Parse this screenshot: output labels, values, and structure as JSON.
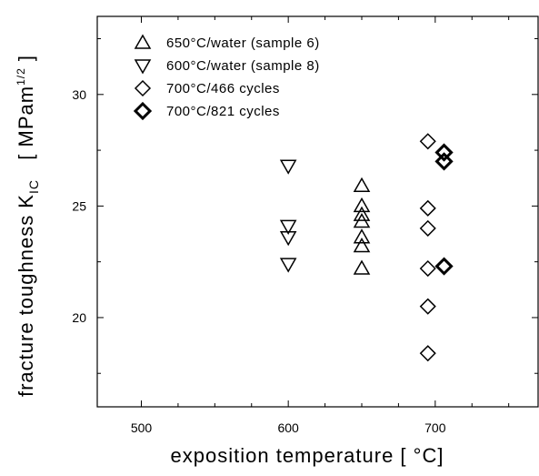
{
  "chart_data": {
    "type": "scatter",
    "title": "",
    "xlabel": "exposition temperature [ °C]",
    "ylabel_main": "fracture toughness K",
    "ylabel_sub": "IC",
    "ylabel_unit_open": "[ MPam",
    "ylabel_unit_sup": "1/2",
    "ylabel_unit_close": " ]",
    "xlim": [
      470,
      770
    ],
    "ylim": [
      16,
      33.5
    ],
    "xticks": [
      500,
      600,
      700
    ],
    "yticks": [
      20,
      25,
      30
    ],
    "xtick_labels": [
      "500",
      "600",
      "700"
    ],
    "ytick_labels": [
      "20",
      "25",
      "30"
    ],
    "grid": false,
    "legend_placement": "top-left",
    "series": [
      {
        "name": "650°C/water (sample 6)",
        "marker": "triangle-up",
        "points": [
          {
            "x": 650,
            "y": 25.9
          },
          {
            "x": 650,
            "y": 25.0
          },
          {
            "x": 650,
            "y": 24.6
          },
          {
            "x": 650,
            "y": 24.3
          },
          {
            "x": 650,
            "y": 23.6
          },
          {
            "x": 650,
            "y": 23.2
          },
          {
            "x": 650,
            "y": 22.2
          }
        ]
      },
      {
        "name": "600°C/water (sample 8)",
        "marker": "triangle-down",
        "points": [
          {
            "x": 600,
            "y": 26.8
          },
          {
            "x": 600,
            "y": 24.1
          },
          {
            "x": 600,
            "y": 23.6
          },
          {
            "x": 600,
            "y": 22.4
          }
        ]
      },
      {
        "name": "700°C/466 cycles",
        "marker": "diamond",
        "points": [
          {
            "x": 695,
            "y": 27.9
          },
          {
            "x": 695,
            "y": 24.9
          },
          {
            "x": 695,
            "y": 24.0
          },
          {
            "x": 695,
            "y": 22.2
          },
          {
            "x": 695,
            "y": 20.5
          },
          {
            "x": 695,
            "y": 18.4
          }
        ]
      },
      {
        "name": "700°C/821 cycles",
        "marker": "diamond-bold",
        "points": [
          {
            "x": 706,
            "y": 27.4
          },
          {
            "x": 706,
            "y": 27.0
          },
          {
            "x": 706,
            "y": 22.3
          }
        ]
      }
    ]
  }
}
